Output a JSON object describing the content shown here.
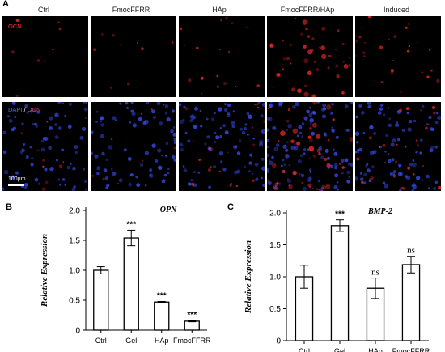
{
  "panel_a": {
    "letter": "A",
    "columns": [
      "Ctrl",
      "FmocFFRR",
      "HAp",
      "FmocFFRR/HAp",
      "Induced"
    ],
    "row1_label": "OCN",
    "row2_label_dapi": "DAPI",
    "row2_label_sep": " / ",
    "row2_label_ocn": "OCN",
    "scale_bar": "100μm",
    "colors": {
      "ocn": "#ff2a2a",
      "dapi": "#3a50ff"
    }
  },
  "chart_data": [
    {
      "panel": "B",
      "type": "bar",
      "title": "OPN",
      "ylabel": "Relative Expression",
      "xlabel": "",
      "categories": [
        "Ctrl",
        "Gel",
        "HAp",
        "FmocFFRR"
      ],
      "values": [
        1.0,
        1.54,
        0.47,
        0.15
      ],
      "errors": [
        0.06,
        0.13,
        0.01,
        0.01
      ],
      "significance": [
        "",
        "***",
        "***",
        "***"
      ],
      "ylim": [
        0,
        2.0
      ],
      "yticks": [
        "0",
        "0.5",
        "1.0",
        "1.5",
        "2.0"
      ],
      "grid": false
    },
    {
      "panel": "C",
      "type": "bar",
      "title": "BMP-2",
      "ylabel": "Relative Expression",
      "xlabel": "",
      "categories": [
        "Ctrl",
        "Gel",
        "HAp",
        "FmocFFRR"
      ],
      "values": [
        1.0,
        1.8,
        0.82,
        1.19
      ],
      "errors": [
        0.18,
        0.09,
        0.16,
        0.13
      ],
      "significance": [
        "",
        "***",
        "ns",
        "ns"
      ],
      "ylim": [
        0,
        2.0
      ],
      "yticks": [
        "0",
        "0.5",
        "1.0",
        "1.5",
        "2.0"
      ],
      "grid": false
    }
  ]
}
